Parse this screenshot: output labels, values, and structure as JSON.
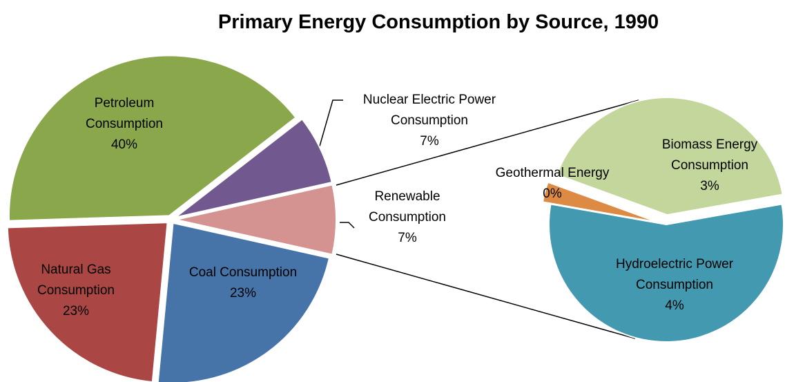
{
  "chart_data": {
    "type": "pie-of-pie",
    "title": "Primary Energy Consumption by Source, 1990",
    "categories": [
      "Coal Consumption",
      "Natural Gas Consumption",
      "Petroleum Consumption",
      "Nuclear Electric Power Consumption",
      "Renewable Consumption"
    ],
    "values": [
      23,
      23,
      40,
      7,
      7
    ],
    "value_labels": [
      "23%",
      "23%",
      "40%",
      "7%",
      "7%"
    ],
    "colors": [
      "#4674a8",
      "#aa4644",
      "#8aa84b",
      "#71588f",
      "#d49391"
    ],
    "secondary": {
      "categories": [
        "Hydroelectric Power Consumption",
        "Geothermal Energy",
        "Biomass Energy Consumption"
      ],
      "values": [
        4,
        0.2,
        3
      ],
      "value_labels": [
        "4%",
        "0%",
        "3%"
      ],
      "colors": [
        "#4299b0",
        "#dd8a44",
        "#c3d69b"
      ]
    }
  }
}
